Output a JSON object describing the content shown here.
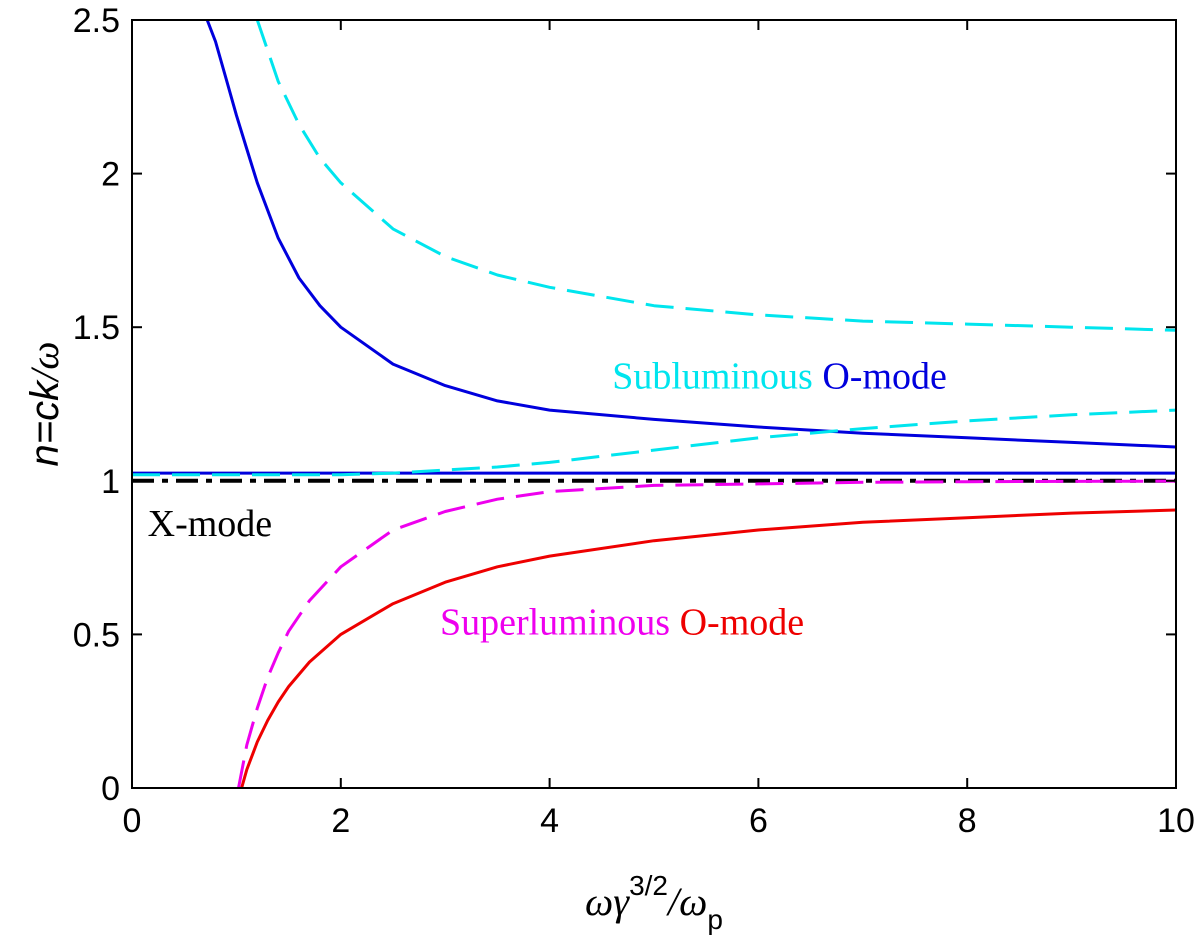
{
  "chart_data": {
    "type": "line",
    "title": "",
    "xlabel": "ωγ^3/2/ω_p",
    "ylabel": "n=ck/ω",
    "xlabel_parts": {
      "base": "ωγ",
      "sup": "3/2",
      "mid": "/ω",
      "sub": "p"
    },
    "ylabel_parts": {
      "pre": "n=",
      "italic": "ck",
      "post": "/ω"
    },
    "xlim": [
      0,
      10
    ],
    "ylim": [
      0,
      2.5
    ],
    "xticks": [
      0,
      2,
      4,
      6,
      8,
      10
    ],
    "yticks": [
      0,
      0.5,
      1,
      1.5,
      2,
      2.5
    ],
    "xtick_labels": [
      "0",
      "2",
      "4",
      "6",
      "8",
      "10"
    ],
    "ytick_labels": [
      "0",
      "0.5",
      "1",
      "1.5",
      "2",
      "2.5"
    ],
    "grid": false,
    "series": [
      {
        "color": "#0000dd",
        "dash": "solid",
        "x": [
          0.72,
          0.8,
          0.9,
          1.0,
          1.1,
          1.2,
          1.4,
          1.6,
          1.8,
          2.0,
          2.5,
          3.0,
          3.5,
          4.0,
          5.0,
          6.0,
          7.0,
          8.0,
          9.0,
          10.0
        ],
        "y": [
          2.5,
          2.43,
          2.31,
          2.19,
          2.08,
          1.97,
          1.79,
          1.66,
          1.57,
          1.5,
          1.38,
          1.31,
          1.26,
          1.23,
          1.2,
          1.175,
          1.155,
          1.14,
          1.125,
          1.11
        ]
      },
      {
        "color": "#0000dd",
        "dash": "solid",
        "x": [
          0,
          10
        ],
        "y": [
          1.025,
          1.025
        ]
      },
      {
        "color": "#00e5ee",
        "dash": "dashed",
        "x": [
          1.2,
          1.4,
          1.6,
          1.8,
          2.0,
          2.5,
          3.0,
          3.5,
          4.0,
          4.5,
          5.0,
          6.0,
          7.0,
          8.0,
          9.0,
          10.0
        ],
        "y": [
          2.5,
          2.3,
          2.16,
          2.05,
          1.97,
          1.82,
          1.73,
          1.67,
          1.63,
          1.6,
          1.57,
          1.54,
          1.52,
          1.51,
          1.5,
          1.49
        ]
      },
      {
        "color": "#00e5ee",
        "dash": "dashed",
        "x": [
          0,
          1.0,
          2.0,
          2.5,
          3.0,
          3.5,
          4.0,
          5.0,
          6.0,
          7.0,
          8.0,
          9.0,
          10.0
        ],
        "y": [
          1.02,
          1.02,
          1.02,
          1.025,
          1.035,
          1.045,
          1.06,
          1.1,
          1.14,
          1.17,
          1.195,
          1.215,
          1.23
        ]
      },
      {
        "color": "#000000",
        "dash": "dashdot",
        "x": [
          0,
          10
        ],
        "y": [
          1.0,
          1.0
        ]
      },
      {
        "color": "#ee00ee",
        "dash": "dashed",
        "x": [
          1.02,
          1.1,
          1.2,
          1.3,
          1.4,
          1.5,
          1.7,
          2.0,
          2.5,
          3.0,
          3.5,
          4.0,
          5.0,
          6.0,
          7.0,
          8.0,
          9.0,
          10.0
        ],
        "y": [
          0.0,
          0.14,
          0.26,
          0.36,
          0.44,
          0.51,
          0.61,
          0.72,
          0.84,
          0.9,
          0.94,
          0.965,
          0.985,
          0.99,
          0.995,
          0.997,
          0.998,
          0.999
        ]
      },
      {
        "color": "#ee0000",
        "dash": "solid",
        "x": [
          1.05,
          1.1,
          1.2,
          1.3,
          1.4,
          1.5,
          1.7,
          2.0,
          2.5,
          3.0,
          3.5,
          4.0,
          5.0,
          6.0,
          7.0,
          8.0,
          9.0,
          10.0
        ],
        "y": [
          0.0,
          0.06,
          0.15,
          0.22,
          0.28,
          0.33,
          0.41,
          0.5,
          0.6,
          0.67,
          0.72,
          0.755,
          0.805,
          0.84,
          0.865,
          0.88,
          0.895,
          0.905
        ]
      }
    ],
    "annotations": [
      {
        "x": 4.6,
        "y": 1.3,
        "parts": [
          {
            "text": "Subluminous",
            "color": "#00e5ee"
          },
          {
            "text": " O-mode",
            "color": "#0000dd"
          }
        ]
      },
      {
        "x": 0.15,
        "y": 0.82,
        "parts": [
          {
            "text": "X-mode",
            "color": "#000000"
          }
        ]
      },
      {
        "x": 2.95,
        "y": 0.5,
        "parts": [
          {
            "text": "Superluminous",
            "color": "#ee00ee"
          },
          {
            "text": " O-mode",
            "color": "#ee0000"
          }
        ]
      }
    ]
  }
}
